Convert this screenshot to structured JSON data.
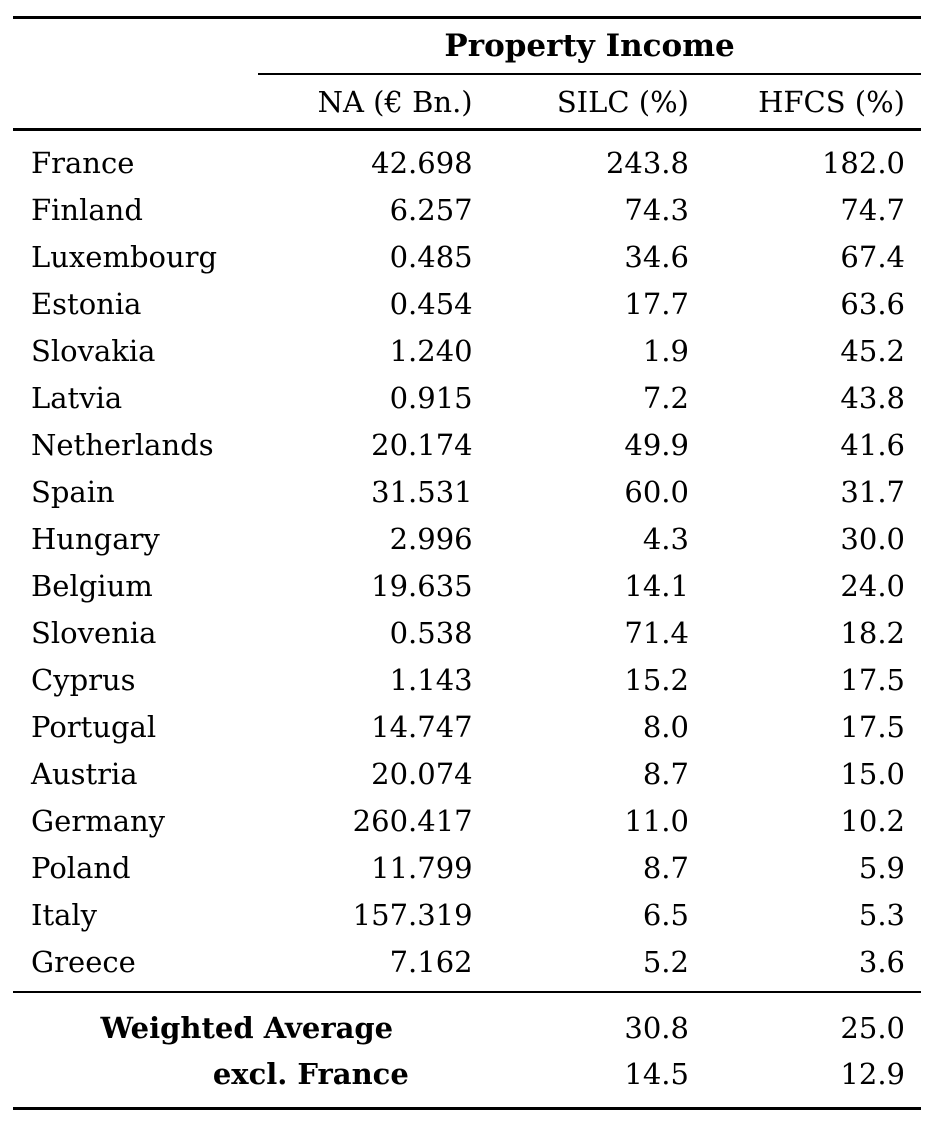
{
  "table": {
    "group_header": "Property Income",
    "columns": [
      "NA (€ Bn.)",
      "SILC (%)",
      "HFCS (%)"
    ],
    "rows": [
      {
        "country": "France",
        "na": "42.698",
        "silc": "243.8",
        "hfcs": "182.0"
      },
      {
        "country": "Finland",
        "na": "6.257",
        "silc": "74.3",
        "hfcs": "74.7"
      },
      {
        "country": "Luxembourg",
        "na": "0.485",
        "silc": "34.6",
        "hfcs": "67.4"
      },
      {
        "country": "Estonia",
        "na": "0.454",
        "silc": "17.7",
        "hfcs": "63.6"
      },
      {
        "country": "Slovakia",
        "na": "1.240",
        "silc": "1.9",
        "hfcs": "45.2"
      },
      {
        "country": "Latvia",
        "na": "0.915",
        "silc": "7.2",
        "hfcs": "43.8"
      },
      {
        "country": "Netherlands",
        "na": "20.174",
        "silc": "49.9",
        "hfcs": "41.6"
      },
      {
        "country": "Spain",
        "na": "31.531",
        "silc": "60.0",
        "hfcs": "31.7"
      },
      {
        "country": "Hungary",
        "na": "2.996",
        "silc": "4.3",
        "hfcs": "30.0"
      },
      {
        "country": "Belgium",
        "na": "19.635",
        "silc": "14.1",
        "hfcs": "24.0"
      },
      {
        "country": "Slovenia",
        "na": "0.538",
        "silc": "71.4",
        "hfcs": "18.2"
      },
      {
        "country": "Cyprus",
        "na": "1.143",
        "silc": "15.2",
        "hfcs": "17.5"
      },
      {
        "country": "Portugal",
        "na": "14.747",
        "silc": "8.0",
        "hfcs": "17.5"
      },
      {
        "country": "Austria",
        "na": "20.074",
        "silc": "8.7",
        "hfcs": "15.0"
      },
      {
        "country": "Germany",
        "na": "260.417",
        "silc": "11.0",
        "hfcs": "10.2"
      },
      {
        "country": "Poland",
        "na": "11.799",
        "silc": "8.7",
        "hfcs": "5.9"
      },
      {
        "country": "Italy",
        "na": "157.319",
        "silc": "6.5",
        "hfcs": "5.3"
      },
      {
        "country": "Greece",
        "na": "7.162",
        "silc": "5.2",
        "hfcs": "3.6"
      }
    ],
    "footer_rows": [
      {
        "label": "Weighted Average",
        "silc": "30.8",
        "hfcs": "25.0"
      },
      {
        "label": "excl. France",
        "silc": "14.5",
        "hfcs": "12.9"
      }
    ]
  },
  "colors": {
    "text": "#000000",
    "background": "#ffffff",
    "rule": "#000000"
  }
}
